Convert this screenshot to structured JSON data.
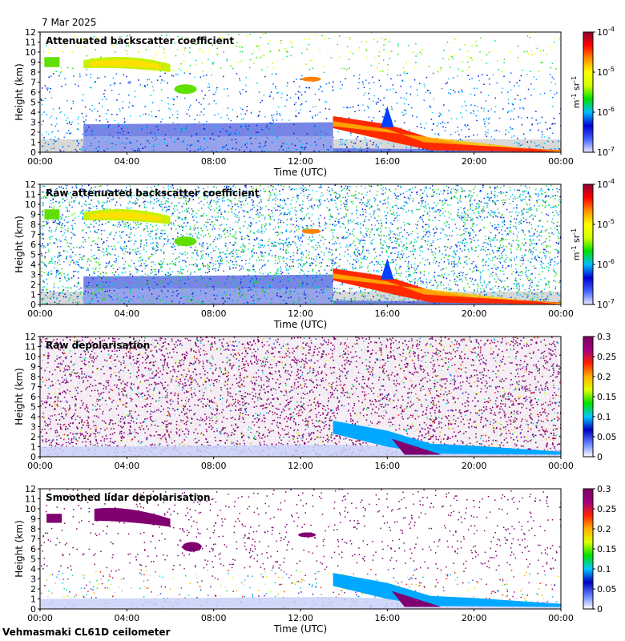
{
  "header": {
    "date": "7 Mar 2025"
  },
  "footer": {
    "instrument": "Vehmasmaki CL61D ceilometer"
  },
  "chart_data": [
    {
      "type": "heatmap",
      "title": "Attenuated backscatter coefficient",
      "xlabel": "Time (UTC)",
      "ylabel": "Height (km)",
      "x_ticks": [
        "00:00",
        "04:00",
        "08:00",
        "12:00",
        "16:00",
        "20:00",
        "00:00"
      ],
      "y_ticks": [
        "0",
        "1",
        "2",
        "3",
        "4",
        "5",
        "6",
        "7",
        "8",
        "9",
        "10",
        "11",
        "12"
      ],
      "ylim": [
        0,
        12
      ],
      "colorbar": {
        "scale": "log",
        "ticks": [
          "10",
          "10",
          "10",
          "10"
        ],
        "exponents": [
          "-7",
          "-6",
          "-5",
          "-4"
        ],
        "unit": "m",
        "unit_exp": "-1",
        "unit2": "sr",
        "unit2_exp": "-1"
      },
      "colors": [
        "#d8d8d8",
        "#0000cc",
        "#00c8ff",
        "#00e000",
        "#ffff00",
        "#ff8000",
        "#d00000",
        "#800000"
      ]
    },
    {
      "type": "heatmap",
      "title": "Raw attenuated backscatter coefficient",
      "xlabel": "Time (UTC)",
      "ylabel": "Height (km)",
      "x_ticks": [
        "00:00",
        "04:00",
        "08:00",
        "12:00",
        "16:00",
        "20:00",
        "00:00"
      ],
      "y_ticks": [
        "0",
        "1",
        "2",
        "3",
        "4",
        "5",
        "6",
        "7",
        "8",
        "9",
        "10",
        "11",
        "12"
      ],
      "ylim": [
        0,
        12
      ],
      "colorbar": {
        "scale": "log",
        "ticks": [
          "10",
          "10",
          "10",
          "10"
        ],
        "exponents": [
          "-7",
          "-6",
          "-5",
          "-4"
        ],
        "unit": "m",
        "unit_exp": "-1",
        "unit2": "sr",
        "unit2_exp": "-1"
      }
    },
    {
      "type": "heatmap",
      "title": "Raw depolarisation",
      "xlabel": "",
      "ylabel": "Height (km)",
      "x_ticks": [
        "00:00",
        "04:00",
        "08:00",
        "12:00",
        "16:00",
        "20:00",
        "00:00"
      ],
      "y_ticks": [
        "0",
        "1",
        "2",
        "3",
        "4",
        "5",
        "6",
        "7",
        "8",
        "9",
        "10",
        "11",
        "12"
      ],
      "ylim": [
        0,
        12
      ],
      "colorbar": {
        "scale": "linear",
        "ticks": [
          "0",
          "0.05",
          "0.1",
          "0.15",
          "0.2",
          "0.25",
          "0.3"
        ],
        "range": [
          0,
          0.3
        ]
      }
    },
    {
      "type": "heatmap",
      "title": "Smoothed lidar depolarisation",
      "xlabel": "Time (UTC)",
      "ylabel": "Height (km)",
      "x_ticks": [
        "00:00",
        "04:00",
        "08:00",
        "12:00",
        "16:00",
        "20:00",
        "00:00"
      ],
      "y_ticks": [
        "0",
        "1",
        "2",
        "3",
        "4",
        "5",
        "6",
        "7",
        "8",
        "9",
        "10",
        "11",
        "12"
      ],
      "ylim": [
        0,
        12
      ],
      "colorbar": {
        "scale": "linear",
        "ticks": [
          "0",
          "0.05",
          "0.1",
          "0.15",
          "0.2",
          "0.25",
          "0.3"
        ],
        "range": [
          0,
          0.3
        ]
      }
    }
  ]
}
